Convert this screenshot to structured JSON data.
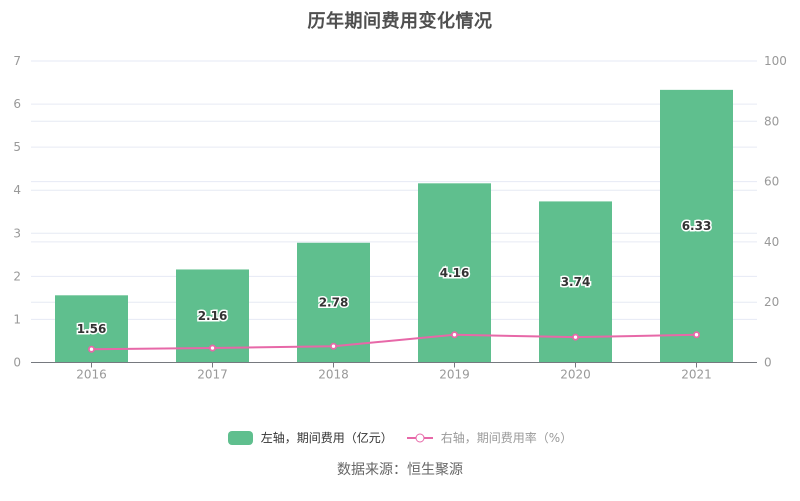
{
  "chart_data": {
    "type": "bar",
    "title": "历年期间费用变化情况",
    "categories": [
      "2016",
      "2017",
      "2018",
      "2019",
      "2020",
      "2021"
    ],
    "series": [
      {
        "name": "左轴，期间费用（亿元）",
        "type": "bar",
        "yaxis": "left",
        "color": "#5FBF8E",
        "values": [
          1.56,
          2.16,
          2.78,
          4.16,
          3.74,
          6.33
        ],
        "labels": [
          "1.56",
          "2.16",
          "2.78",
          "4.16",
          "3.74",
          "6.33"
        ]
      },
      {
        "name": "右轴，期间费用率（%）",
        "type": "line",
        "yaxis": "right",
        "color": "#E768A8",
        "values": [
          4.4,
          4.8,
          5.4,
          9.2,
          8.4,
          9.2
        ],
        "values_estimated": true
      }
    ],
    "left_axis": {
      "min": 0,
      "max": 7,
      "ticks": [
        "0",
        "1",
        "2",
        "3",
        "4",
        "5",
        "6",
        "7"
      ]
    },
    "right_axis": {
      "min": 0,
      "max": 100,
      "ticks": [
        "0",
        "20",
        "40",
        "60",
        "80",
        "100"
      ]
    },
    "grid": true,
    "legend_position": "bottom"
  },
  "legend": {
    "bar_label": "左轴，期间费用（亿元）",
    "line_label": "右轴，期间费用率（%）"
  },
  "source": "数据来源：恒生聚源",
  "colors": {
    "bar": "#5FBF8E",
    "line": "#E768A8",
    "grid": "#E6EAF4",
    "axis_line": "#76797F",
    "axis_label": "#999999",
    "title": "#4F4F4F",
    "value_label": "#333333",
    "legend_bar_text": "#333333",
    "legend_line_text": "#999999",
    "source_text": "#666666"
  }
}
